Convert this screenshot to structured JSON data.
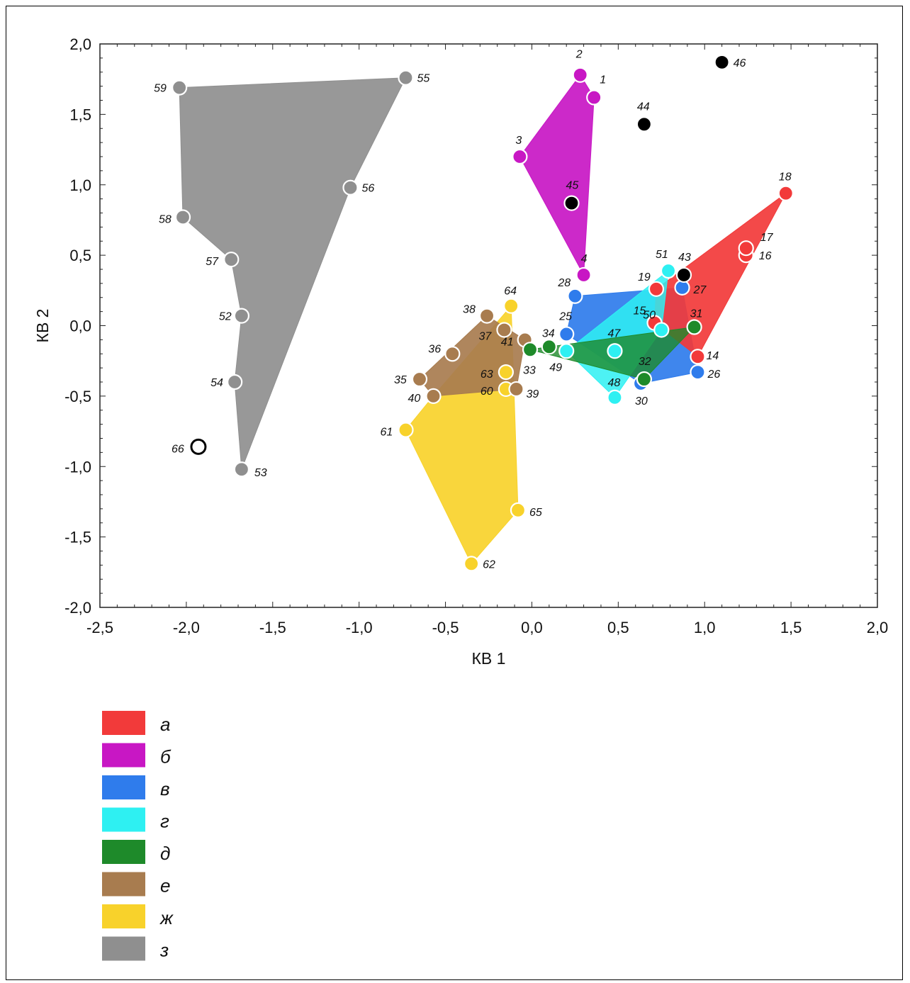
{
  "chart_data": {
    "type": "scatter",
    "title": "",
    "xlabel": "КВ 1",
    "ylabel": "КВ 2",
    "xlim": [
      -2.5,
      2.0
    ],
    "ylim": [
      -2.0,
      2.0
    ],
    "grid": false,
    "x_ticks": [
      -2.5,
      -2.0,
      -1.5,
      -1.0,
      -0.5,
      0.0,
      0.5,
      1.0,
      1.5,
      2.0
    ],
    "y_ticks": [
      -2.0,
      -1.5,
      -1.0,
      -0.5,
      0.0,
      0.5,
      1.0,
      1.5,
      2.0
    ],
    "x_tick_labels": [
      "-2,5",
      "-2,0",
      "-1,5",
      "-1,0",
      "-0,5",
      "0,0",
      "0,5",
      "1,0",
      "1,5",
      "2,0"
    ],
    "y_tick_labels": [
      "-2,0",
      "-1,5",
      "-1,0",
      "-0,5",
      "0,0",
      "0,5",
      "1,0",
      "1,5",
      "2,0"
    ],
    "legend_placement": "below-left",
    "series": [
      {
        "name": "а",
        "color": "#f23a3a",
        "hull": [
          18,
          14,
          15,
          19
        ],
        "points": [
          {
            "id": "14",
            "x": 0.96,
            "y": -0.22
          },
          {
            "id": "15",
            "x": 0.71,
            "y": 0.02
          },
          {
            "id": "16",
            "x": 1.24,
            "y": 0.5
          },
          {
            "id": "17",
            "x": 1.24,
            "y": 0.55
          },
          {
            "id": "18",
            "x": 1.47,
            "y": 0.94
          },
          {
            "id": "19",
            "x": 0.72,
            "y": 0.26
          }
        ]
      },
      {
        "name": "б",
        "color": "#c817c4",
        "hull": [
          2,
          1,
          4,
          3
        ],
        "points": [
          {
            "id": "1",
            "x": 0.36,
            "y": 1.62
          },
          {
            "id": "2",
            "x": 0.28,
            "y": 1.78
          },
          {
            "id": "3",
            "x": -0.07,
            "y": 1.2
          },
          {
            "id": "4",
            "x": 0.3,
            "y": 0.36
          }
        ]
      },
      {
        "name": "в",
        "color": "#2f7cec",
        "hull": [
          28,
          27,
          26,
          30,
          25
        ],
        "points": [
          {
            "id": "25",
            "x": 0.2,
            "y": -0.06
          },
          {
            "id": "26",
            "x": 0.96,
            "y": -0.33
          },
          {
            "id": "27",
            "x": 0.87,
            "y": 0.27
          },
          {
            "id": "28",
            "x": 0.25,
            "y": 0.21
          },
          {
            "id": "30",
            "x": 0.63,
            "y": -0.41
          }
        ]
      },
      {
        "name": "г",
        "color": "#2ef0f2",
        "hull": [
          51,
          50,
          48,
          49
        ],
        "points": [
          {
            "id": "47",
            "x": 0.48,
            "y": -0.18
          },
          {
            "id": "48",
            "x": 0.48,
            "y": -0.51
          },
          {
            "id": "49",
            "x": 0.2,
            "y": -0.18
          },
          {
            "id": "50",
            "x": 0.75,
            "y": -0.03
          },
          {
            "id": "51",
            "x": 0.79,
            "y": 0.39
          }
        ]
      },
      {
        "name": "д",
        "color": "#1e8a2a",
        "hull": [
          33,
          34,
          31,
          32
        ],
        "points": [
          {
            "id": "31",
            "x": 0.94,
            "y": -0.01
          },
          {
            "id": "32",
            "x": 0.65,
            "y": -0.38
          },
          {
            "id": "33",
            "x": -0.01,
            "y": -0.17
          },
          {
            "id": "34",
            "x": 0.1,
            "y": -0.15
          }
        ]
      },
      {
        "name": "е",
        "color": "#a87c4f",
        "hull": [
          38,
          41,
          39,
          40,
          35
        ],
        "points": [
          {
            "id": "35",
            "x": -0.65,
            "y": -0.38
          },
          {
            "id": "36",
            "x": -0.46,
            "y": -0.2
          },
          {
            "id": "37",
            "x": -0.16,
            "y": -0.03
          },
          {
            "id": "38",
            "x": -0.26,
            "y": 0.07
          },
          {
            "id": "39",
            "x": -0.09,
            "y": -0.45
          },
          {
            "id": "40",
            "x": -0.57,
            "y": -0.5
          },
          {
            "id": "41",
            "x": -0.04,
            "y": -0.1
          }
        ]
      },
      {
        "name": "ж",
        "color": "#f8d22b",
        "hull": [
          64,
          65,
          62,
          61,
          40
        ],
        "points": [
          {
            "id": "60",
            "x": -0.15,
            "y": -0.45
          },
          {
            "id": "61",
            "x": -0.73,
            "y": -0.74
          },
          {
            "id": "62",
            "x": -0.35,
            "y": -1.69
          },
          {
            "id": "63",
            "x": -0.15,
            "y": -0.33
          },
          {
            "id": "64",
            "x": -0.12,
            "y": 0.14
          },
          {
            "id": "65",
            "x": -0.08,
            "y": -1.31
          }
        ]
      },
      {
        "name": "з",
        "color": "#8f8f8f",
        "hull": [
          59,
          55,
          56,
          53,
          54,
          52,
          57,
          58
        ],
        "points": [
          {
            "id": "52",
            "x": -1.68,
            "y": 0.07
          },
          {
            "id": "53",
            "x": -1.68,
            "y": -1.02
          },
          {
            "id": "54",
            "x": -1.72,
            "y": -0.4
          },
          {
            "id": "55",
            "x": -0.73,
            "y": 1.76
          },
          {
            "id": "56",
            "x": -1.05,
            "y": 0.98
          },
          {
            "id": "57",
            "x": -1.74,
            "y": 0.47
          },
          {
            "id": "58",
            "x": -2.02,
            "y": 0.77
          },
          {
            "id": "59",
            "x": -2.04,
            "y": 1.69
          }
        ]
      }
    ],
    "unclassified": [
      {
        "id": "43",
        "x": 0.88,
        "y": 0.36,
        "style": "filled-black"
      },
      {
        "id": "44",
        "x": 0.65,
        "y": 1.43,
        "style": "filled-black"
      },
      {
        "id": "45",
        "x": 0.23,
        "y": 0.87,
        "style": "filled-black"
      },
      {
        "id": "46",
        "x": 1.1,
        "y": 1.87,
        "style": "filled-black"
      },
      {
        "id": "66",
        "x": -1.93,
        "y": -0.86,
        "style": "open-black"
      }
    ]
  }
}
